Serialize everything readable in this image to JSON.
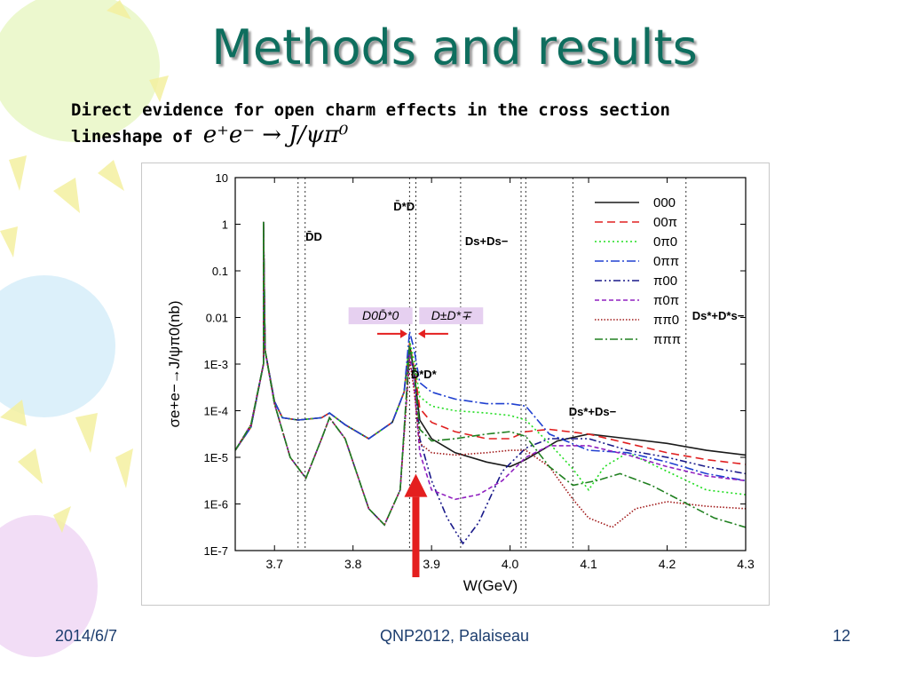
{
  "slide": {
    "title": "Methods and results",
    "subtitle_line1": "Direct evidence for open charm effects in the cross section",
    "subtitle_line2_prefix": "lineshape of ",
    "subtitle_formula": "e⁺e⁻ → J/ψπ⁰",
    "footer": {
      "date": "2014/6/7",
      "center": "QNP2012, Palaiseau",
      "page": "12"
    }
  },
  "colors": {
    "title": "#0e6e5e",
    "footer": "#1c3d6e",
    "highlight": "#e6d0f0",
    "arrow": "#e41f1f"
  },
  "chart_data": {
    "type": "line",
    "xlabel": "W(GeV)",
    "ylabel": "σe+e−→J/ψπ0(nb)",
    "xlim": [
      3.65,
      4.3
    ],
    "ylim_log10": [
      -7,
      1
    ],
    "log_y": true,
    "x_ticks": [
      "3.7",
      "3.8",
      "3.9",
      "4.0",
      "4.1",
      "4.2",
      "4.3"
    ],
    "y_ticks": [
      "10",
      "1",
      "0.1",
      "0.01",
      "1E-3",
      "1E-4",
      "1E-5",
      "1E-6",
      "1E-7"
    ],
    "thresholds": [
      3.73,
      3.739,
      3.872,
      3.88,
      3.937,
      4.014,
      4.02,
      4.08,
      4.224
    ],
    "threshold_labels": [
      {
        "text": "D̄D",
        "x": 3.75,
        "y_log": -0.35
      },
      {
        "text": "D̄*D",
        "x": 3.865,
        "y_log": 0.3
      },
      {
        "text": "Ds+Ds−",
        "x": 3.97,
        "y_log": -0.45
      },
      {
        "text": "D̄*D*",
        "x": 3.89,
        "y_log": -3.3
      },
      {
        "text": "Ds*+Ds−",
        "x": 4.105,
        "y_log": -4.1
      },
      {
        "text": "Ds*+D*s−",
        "x": 4.265,
        "y_log": -2.05
      }
    ],
    "annotations": [
      {
        "text": "D0D̄*0",
        "x": 3.835,
        "y_log": -2.05
      },
      {
        "text": "D±D*∓",
        "x": 3.925,
        "y_log": -2.05
      }
    ],
    "legend_position": "top-right",
    "series": [
      {
        "name": "000",
        "color": "#1a1a1a",
        "dash": "",
        "points": [
          [
            3.65,
            -4.85
          ],
          [
            3.67,
            -4.35
          ],
          [
            3.686,
            -3.0
          ],
          [
            3.686,
            0.05
          ],
          [
            3.688,
            -2.7
          ],
          [
            3.7,
            -3.8
          ],
          [
            3.71,
            -4.15
          ],
          [
            3.73,
            -4.2
          ],
          [
            3.76,
            -4.15
          ],
          [
            3.77,
            -4.05
          ],
          [
            3.79,
            -4.3
          ],
          [
            3.82,
            -4.6
          ],
          [
            3.85,
            -4.25
          ],
          [
            3.865,
            -3.6
          ],
          [
            3.872,
            -2.6
          ],
          [
            3.878,
            -3.2
          ],
          [
            3.885,
            -4.2
          ],
          [
            3.9,
            -4.6
          ],
          [
            3.93,
            -4.9
          ],
          [
            3.97,
            -5.1
          ],
          [
            4.0,
            -5.2
          ],
          [
            4.02,
            -5.05
          ],
          [
            4.06,
            -4.65
          ],
          [
            4.1,
            -4.5
          ],
          [
            4.15,
            -4.6
          ],
          [
            4.2,
            -4.7
          ],
          [
            4.25,
            -4.85
          ],
          [
            4.3,
            -4.95
          ]
        ]
      },
      {
        "name": "00π",
        "color": "#e02020",
        "dash": "9,5",
        "points": [
          [
            3.65,
            -4.85
          ],
          [
            3.67,
            -4.35
          ],
          [
            3.686,
            -3.0
          ],
          [
            3.686,
            0.05
          ],
          [
            3.688,
            -2.7
          ],
          [
            3.7,
            -3.8
          ],
          [
            3.71,
            -4.15
          ],
          [
            3.73,
            -4.2
          ],
          [
            3.76,
            -4.15
          ],
          [
            3.77,
            -4.05
          ],
          [
            3.79,
            -4.3
          ],
          [
            3.82,
            -4.6
          ],
          [
            3.85,
            -4.25
          ],
          [
            3.865,
            -3.6
          ],
          [
            3.872,
            -2.55
          ],
          [
            3.878,
            -3.1
          ],
          [
            3.885,
            -3.95
          ],
          [
            3.9,
            -4.25
          ],
          [
            3.93,
            -4.45
          ],
          [
            3.97,
            -4.6
          ],
          [
            4.0,
            -4.6
          ],
          [
            4.02,
            -4.45
          ],
          [
            4.05,
            -4.4
          ],
          [
            4.1,
            -4.5
          ],
          [
            4.15,
            -4.7
          ],
          [
            4.2,
            -4.9
          ],
          [
            4.25,
            -5.05
          ],
          [
            4.3,
            -5.15
          ]
        ]
      },
      {
        "name": "0π0",
        "color": "#22dd22",
        "dash": "2,3",
        "points": [
          [
            3.65,
            -4.85
          ],
          [
            3.67,
            -4.35
          ],
          [
            3.686,
            -3.0
          ],
          [
            3.686,
            0.05
          ],
          [
            3.688,
            -2.7
          ],
          [
            3.7,
            -3.8
          ],
          [
            3.71,
            -4.15
          ],
          [
            3.73,
            -4.2
          ],
          [
            3.76,
            -4.15
          ],
          [
            3.77,
            -4.05
          ],
          [
            3.79,
            -4.3
          ],
          [
            3.82,
            -4.6
          ],
          [
            3.85,
            -4.25
          ],
          [
            3.865,
            -3.6
          ],
          [
            3.872,
            -2.5
          ],
          [
            3.878,
            -2.95
          ],
          [
            3.885,
            -3.7
          ],
          [
            3.9,
            -3.9
          ],
          [
            3.93,
            -4.0
          ],
          [
            3.97,
            -4.05
          ],
          [
            4.0,
            -4.1
          ],
          [
            4.02,
            -4.2
          ],
          [
            4.05,
            -4.7
          ],
          [
            4.08,
            -5.25
          ],
          [
            4.1,
            -5.7
          ],
          [
            4.12,
            -5.2
          ],
          [
            4.15,
            -4.9
          ],
          [
            4.2,
            -5.3
          ],
          [
            4.25,
            -5.7
          ],
          [
            4.3,
            -5.8
          ]
        ]
      },
      {
        "name": "0ππ",
        "color": "#2040d0",
        "dash": "10,3,2,3",
        "points": [
          [
            3.65,
            -4.85
          ],
          [
            3.67,
            -4.35
          ],
          [
            3.686,
            -3.0
          ],
          [
            3.686,
            0.05
          ],
          [
            3.688,
            -2.7
          ],
          [
            3.7,
            -3.8
          ],
          [
            3.71,
            -4.15
          ],
          [
            3.73,
            -4.2
          ],
          [
            3.76,
            -4.15
          ],
          [
            3.77,
            -4.05
          ],
          [
            3.79,
            -4.3
          ],
          [
            3.82,
            -4.6
          ],
          [
            3.85,
            -4.25
          ],
          [
            3.865,
            -3.6
          ],
          [
            3.872,
            -2.3
          ],
          [
            3.878,
            -2.7
          ],
          [
            3.885,
            -3.4
          ],
          [
            3.9,
            -3.6
          ],
          [
            3.93,
            -3.75
          ],
          [
            3.97,
            -3.85
          ],
          [
            4.0,
            -3.85
          ],
          [
            4.02,
            -3.9
          ],
          [
            4.05,
            -4.5
          ],
          [
            4.1,
            -4.85
          ],
          [
            4.15,
            -4.9
          ],
          [
            4.2,
            -5.1
          ],
          [
            4.25,
            -5.35
          ],
          [
            4.3,
            -5.5
          ]
        ]
      },
      {
        "name": "π00",
        "color": "#1a1a8a",
        "dash": "8,3,2,3,2,3",
        "points": [
          [
            3.65,
            -4.85
          ],
          [
            3.67,
            -4.3
          ],
          [
            3.686,
            -3.0
          ],
          [
            3.686,
            0.05
          ],
          [
            3.688,
            -2.7
          ],
          [
            3.7,
            -3.85
          ],
          [
            3.72,
            -5.0
          ],
          [
            3.74,
            -5.45
          ],
          [
            3.76,
            -4.6
          ],
          [
            3.77,
            -4.15
          ],
          [
            3.79,
            -4.6
          ],
          [
            3.82,
            -6.1
          ],
          [
            3.84,
            -6.45
          ],
          [
            3.86,
            -5.7
          ],
          [
            3.872,
            -2.7
          ],
          [
            3.878,
            -3.2
          ],
          [
            3.885,
            -4.6
          ],
          [
            3.9,
            -5.5
          ],
          [
            3.92,
            -6.3
          ],
          [
            3.94,
            -6.85
          ],
          [
            3.96,
            -6.4
          ],
          [
            3.99,
            -5.3
          ],
          [
            4.02,
            -4.8
          ],
          [
            4.05,
            -4.6
          ],
          [
            4.1,
            -4.6
          ],
          [
            4.15,
            -4.85
          ],
          [
            4.2,
            -5.0
          ],
          [
            4.25,
            -5.2
          ],
          [
            4.3,
            -5.35
          ]
        ]
      },
      {
        "name": "π0π",
        "color": "#9020c0",
        "dash": "5,3",
        "points": [
          [
            3.65,
            -4.85
          ],
          [
            3.67,
            -4.3
          ],
          [
            3.686,
            -3.0
          ],
          [
            3.686,
            0.05
          ],
          [
            3.688,
            -2.7
          ],
          [
            3.7,
            -3.85
          ],
          [
            3.72,
            -5.0
          ],
          [
            3.74,
            -5.45
          ],
          [
            3.76,
            -4.6
          ],
          [
            3.77,
            -4.15
          ],
          [
            3.79,
            -4.6
          ],
          [
            3.82,
            -6.1
          ],
          [
            3.84,
            -6.45
          ],
          [
            3.86,
            -5.7
          ],
          [
            3.872,
            -2.8
          ],
          [
            3.878,
            -3.5
          ],
          [
            3.885,
            -4.9
          ],
          [
            3.9,
            -5.7
          ],
          [
            3.93,
            -5.9
          ],
          [
            3.96,
            -5.8
          ],
          [
            3.99,
            -5.5
          ],
          [
            4.02,
            -5.0
          ],
          [
            4.05,
            -4.75
          ],
          [
            4.1,
            -4.75
          ],
          [
            4.15,
            -4.95
          ],
          [
            4.2,
            -5.2
          ],
          [
            4.25,
            -5.4
          ],
          [
            4.3,
            -5.5
          ]
        ]
      },
      {
        "name": "ππ0",
        "color": "#a01818",
        "dash": "1.5,2",
        "points": [
          [
            3.65,
            -4.85
          ],
          [
            3.67,
            -4.3
          ],
          [
            3.686,
            -3.0
          ],
          [
            3.686,
            0.05
          ],
          [
            3.688,
            -2.7
          ],
          [
            3.7,
            -3.85
          ],
          [
            3.72,
            -5.0
          ],
          [
            3.74,
            -5.45
          ],
          [
            3.76,
            -4.6
          ],
          [
            3.77,
            -4.15
          ],
          [
            3.79,
            -4.6
          ],
          [
            3.82,
            -6.1
          ],
          [
            3.84,
            -6.45
          ],
          [
            3.86,
            -5.7
          ],
          [
            3.872,
            -2.9
          ],
          [
            3.878,
            -3.6
          ],
          [
            3.885,
            -4.7
          ],
          [
            3.9,
            -4.9
          ],
          [
            3.93,
            -4.95
          ],
          [
            3.97,
            -4.9
          ],
          [
            4.0,
            -4.85
          ],
          [
            4.02,
            -4.85
          ],
          [
            4.05,
            -5.2
          ],
          [
            4.08,
            -5.9
          ],
          [
            4.1,
            -6.3
          ],
          [
            4.13,
            -6.5
          ],
          [
            4.16,
            -6.1
          ],
          [
            4.2,
            -5.95
          ],
          [
            4.25,
            -6.05
          ],
          [
            4.3,
            -6.1
          ]
        ]
      },
      {
        "name": "πππ",
        "color": "#208020",
        "dash": "9,3,2,3",
        "points": [
          [
            3.65,
            -4.85
          ],
          [
            3.67,
            -4.3
          ],
          [
            3.686,
            -3.0
          ],
          [
            3.686,
            0.05
          ],
          [
            3.688,
            -2.7
          ],
          [
            3.7,
            -3.85
          ],
          [
            3.72,
            -5.0
          ],
          [
            3.74,
            -5.45
          ],
          [
            3.76,
            -4.6
          ],
          [
            3.77,
            -4.15
          ],
          [
            3.79,
            -4.6
          ],
          [
            3.82,
            -6.1
          ],
          [
            3.84,
            -6.45
          ],
          [
            3.86,
            -5.7
          ],
          [
            3.872,
            -2.6
          ],
          [
            3.878,
            -3.2
          ],
          [
            3.885,
            -4.4
          ],
          [
            3.9,
            -4.65
          ],
          [
            3.93,
            -4.6
          ],
          [
            3.97,
            -4.5
          ],
          [
            4.0,
            -4.45
          ],
          [
            4.02,
            -4.55
          ],
          [
            4.05,
            -5.2
          ],
          [
            4.08,
            -5.6
          ],
          [
            4.11,
            -5.5
          ],
          [
            4.14,
            -5.35
          ],
          [
            4.18,
            -5.6
          ],
          [
            4.22,
            -5.95
          ],
          [
            4.26,
            -6.3
          ],
          [
            4.3,
            -6.5
          ]
        ]
      }
    ]
  }
}
